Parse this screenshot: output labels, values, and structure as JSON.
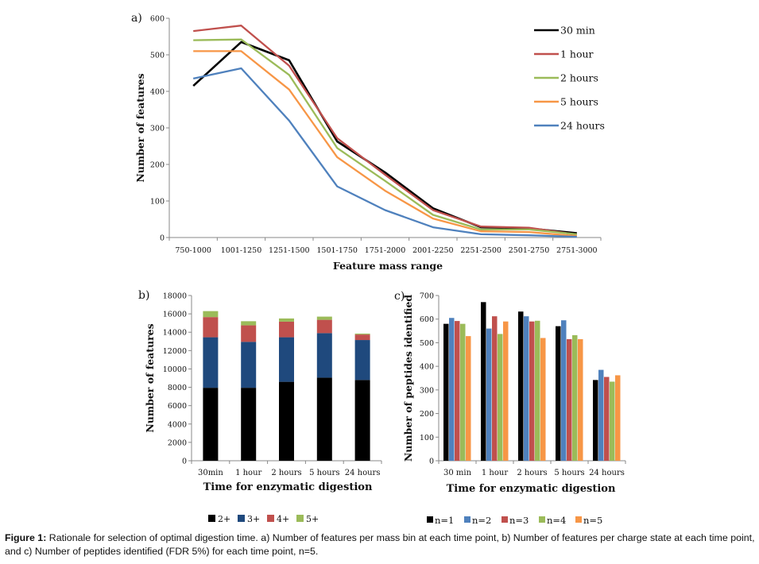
{
  "chart_data": [
    {
      "panel": "a)",
      "type": "line",
      "xlabel": "Feature mass range",
      "ylabel": "Number of features",
      "ylim": [
        0,
        600
      ],
      "yticks": [
        "0",
        "100",
        "200",
        "300",
        "400",
        "500",
        "600"
      ],
      "categories": [
        "750-1000",
        "1001-1250",
        "1251-1500",
        "1501-1750",
        "1751-2000",
        "2001-2250",
        "2251-2500",
        "2501-2750",
        "2751-3000"
      ],
      "series": [
        {
          "name": "30 min",
          "color": "#000000",
          "values": [
            415,
            535,
            485,
            263,
            178,
            80,
            28,
            25,
            12
          ]
        },
        {
          "name": "1 hour",
          "color": "#c0504d",
          "values": [
            565,
            580,
            470,
            272,
            172,
            75,
            30,
            27,
            8
          ]
        },
        {
          "name": "2 hours",
          "color": "#9bbb59",
          "values": [
            540,
            542,
            445,
            245,
            155,
            62,
            22,
            22,
            9
          ]
        },
        {
          "name": "5 hours",
          "color": "#f79646",
          "values": [
            510,
            510,
            405,
            220,
            128,
            52,
            17,
            15,
            4
          ]
        },
        {
          "name": "24 hours",
          "color": "#4f81bd",
          "values": [
            435,
            463,
            320,
            140,
            75,
            28,
            9,
            6,
            2
          ]
        }
      ]
    },
    {
      "panel": "b)",
      "type": "bar",
      "stacked": true,
      "xlabel": "Time for enzymatic digestion",
      "ylabel": "Number of features",
      "ylim": [
        0,
        18000
      ],
      "yticks": [
        "0",
        "2000",
        "4000",
        "6000",
        "8000",
        "10000",
        "12000",
        "14000",
        "16000",
        "18000"
      ],
      "categories": [
        "30min",
        "1 hour",
        "2 hours",
        "5 hours",
        "24 hours"
      ],
      "series": [
        {
          "name": "2+",
          "color": "#000000",
          "values": [
            7950,
            7950,
            8600,
            9050,
            8800
          ]
        },
        {
          "name": "3+",
          "color": "#1f497d",
          "values": [
            5500,
            5000,
            4850,
            4850,
            4350
          ]
        },
        {
          "name": "4+",
          "color": "#c0504d",
          "values": [
            2200,
            1800,
            1700,
            1450,
            600
          ]
        },
        {
          "name": "5+",
          "color": "#9bbb59",
          "values": [
            650,
            450,
            350,
            350,
            100
          ]
        }
      ]
    },
    {
      "panel": "c)",
      "type": "bar",
      "stacked": false,
      "xlabel": "Time for enzymatic digestion",
      "ylabel": "Number of peptides identified",
      "ylim": [
        0,
        700
      ],
      "yticks": [
        "0",
        "100",
        "200",
        "300",
        "400",
        "500",
        "600",
        "700"
      ],
      "categories": [
        "30 min",
        "1 hour",
        "2 hours",
        "5 hours",
        "24 hours"
      ],
      "series": [
        {
          "name": "n=1",
          "color": "#000000",
          "values": [
            580,
            672,
            632,
            570,
            342
          ]
        },
        {
          "name": "n=2",
          "color": "#4f81bd",
          "values": [
            605,
            560,
            612,
            595,
            385
          ]
        },
        {
          "name": "n=3",
          "color": "#c0504d",
          "values": [
            592,
            612,
            590,
            515,
            355
          ]
        },
        {
          "name": "n=4",
          "color": "#9bbb59",
          "values": [
            580,
            537,
            593,
            532,
            335
          ]
        },
        {
          "name": "n=5",
          "color": "#f79646",
          "values": [
            528,
            590,
            520,
            515,
            362
          ]
        }
      ]
    }
  ],
  "caption": {
    "label": "Figure 1:",
    "text": " Rationale for selection of optimal digestion time. a) Number of features per mass bin at each time point, b) Number of features per charge state at each time point, and c) Number of peptides identified (FDR 5%) for each time point, n=5."
  }
}
